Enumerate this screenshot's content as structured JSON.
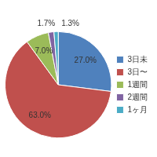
{
  "chart_data": {
    "type": "pie",
    "categories": [
      "3日未",
      "3日〜",
      "1週間",
      "2週間",
      "1ヶ月"
    ],
    "values": [
      27.0,
      63.0,
      7.0,
      1.7,
      1.3
    ],
    "value_labels": [
      "27.0%",
      "63.0%",
      "7.0%",
      "1.7%",
      "1.3%"
    ],
    "colors": [
      "#4f81bd",
      "#c0504d",
      "#9bbb59",
      "#8064a2",
      "#4bacc6"
    ],
    "data_labels": true,
    "legend": "right"
  }
}
